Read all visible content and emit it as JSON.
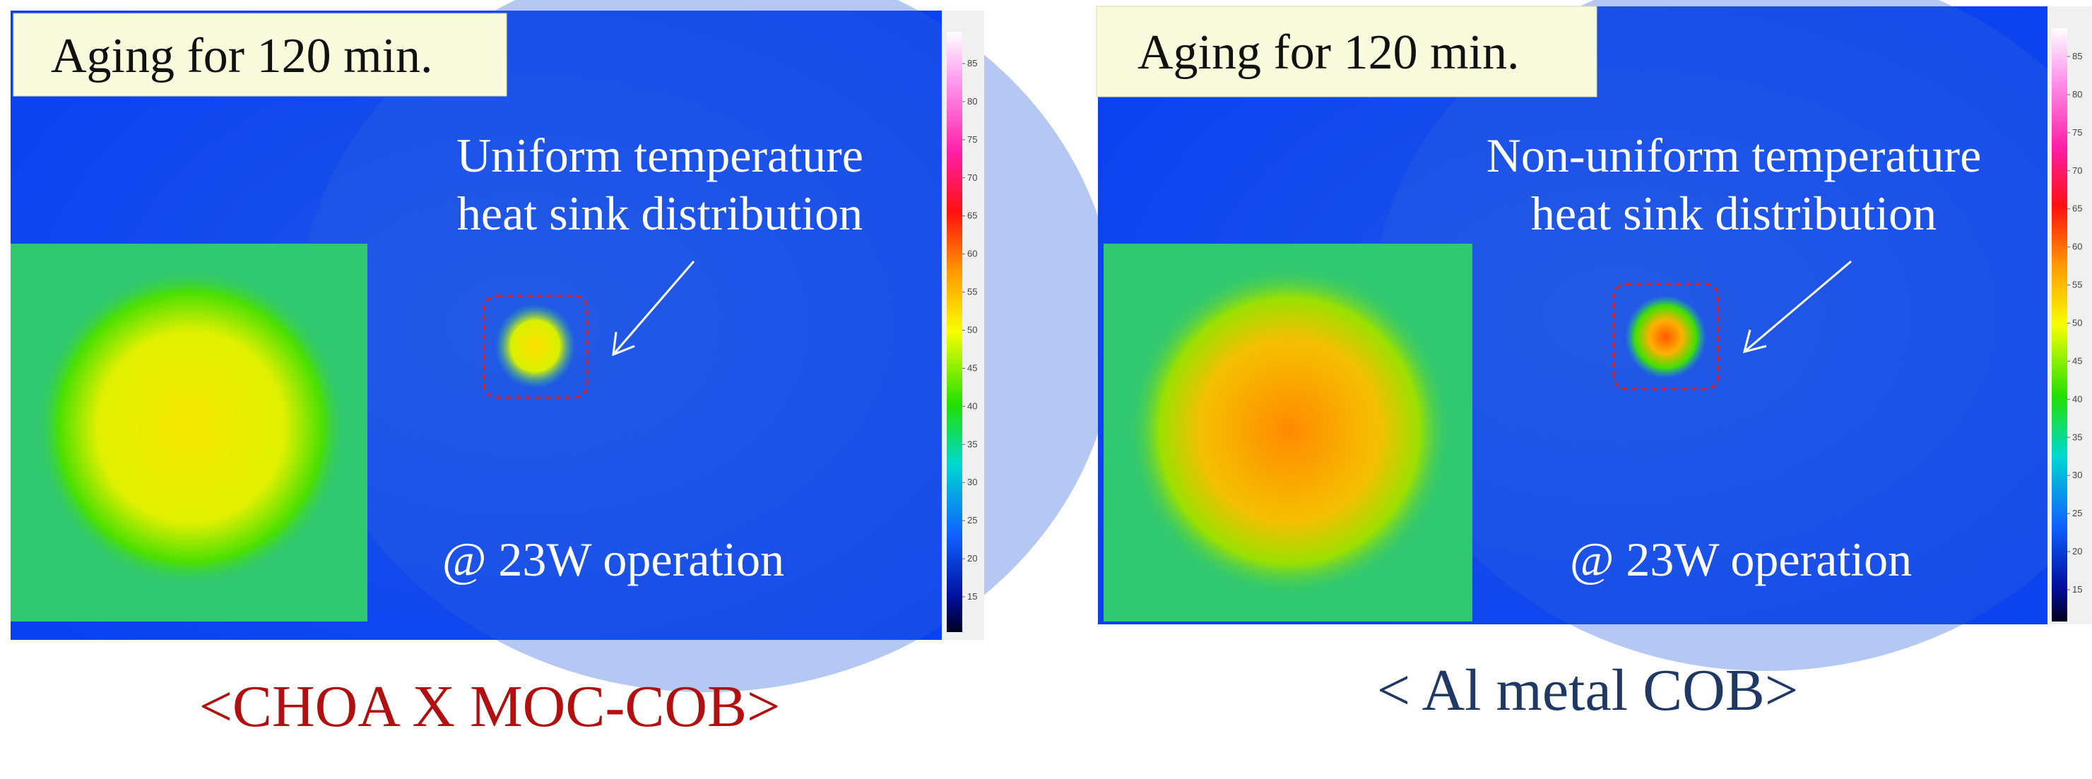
{
  "panels": [
    {
      "label": "Aging for 120 min.",
      "annotation": [
        "Uniform temperature",
        "heat sink distribution"
      ],
      "condition": "@ 23W operation",
      "caption": "<CHOA X MOC-COB>",
      "colorbar_ticks": [
        85,
        80,
        75,
        70,
        65,
        60,
        55,
        50,
        45,
        40,
        35,
        30,
        25,
        20,
        15
      ]
    },
    {
      "label": "Aging for 120 min.",
      "annotation": [
        "Non-uniform temperature",
        "heat sink distribution"
      ],
      "condition": "@ 23W operation",
      "caption": "< Al metal COB>",
      "colorbar_ticks": [
        85,
        80,
        75,
        70,
        65,
        60,
        55,
        50,
        45,
        40,
        35,
        30,
        25,
        20,
        15
      ]
    }
  ]
}
